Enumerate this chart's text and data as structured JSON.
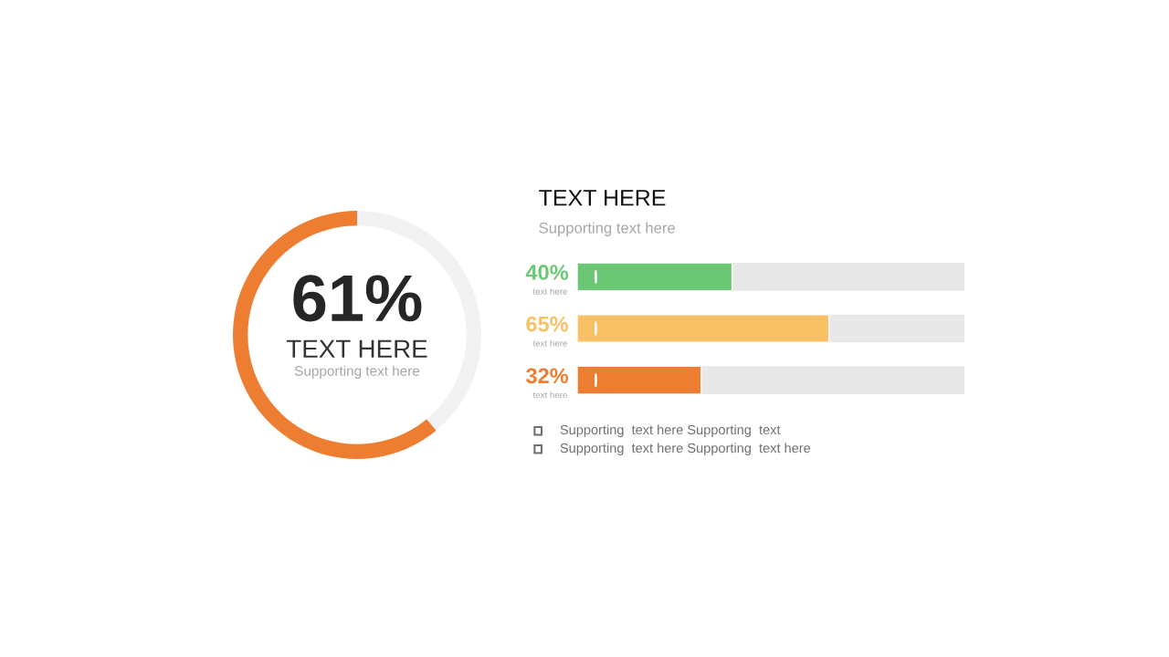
{
  "chart_data": [
    {
      "type": "donut",
      "title": "TEXT HERE",
      "subtitle": "Supporting text here",
      "categories": [
        null,
        null
      ],
      "values": [
        61,
        39
      ],
      "colors": [
        "#ed7d31",
        "#f2f2f2"
      ],
      "value_labels": [
        "61%",
        null
      ]
    },
    {
      "type": "bar",
      "orientation": "horizontal",
      "title": "TEXT HERE",
      "subtitle": "Supporting text here",
      "categories": [
        "text here",
        "text here",
        "text here"
      ],
      "values": [
        40,
        65,
        32
      ],
      "colors": [
        "#6cc774",
        "#f9c165",
        "#ed7d31"
      ],
      "value_labels": [
        "40%",
        "65%",
        "32%"
      ],
      "xlim": [
        0,
        100
      ],
      "tick_labels": false,
      "annotations": [
        "Supporting  text here Supporting  text",
        "Supporting  text here Supporting  text here"
      ]
    }
  ]
}
